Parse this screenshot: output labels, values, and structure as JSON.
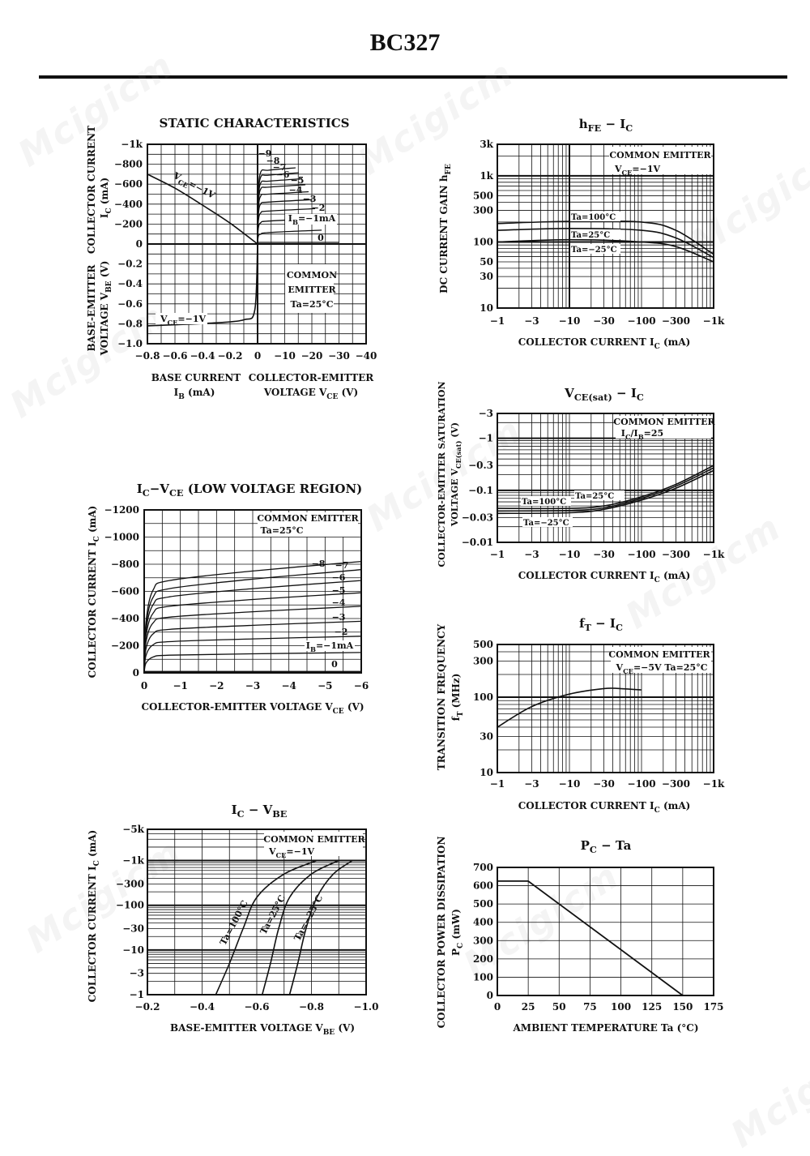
{
  "title": "BC327",
  "watermark": "Mcigicm",
  "chart_data": [
    {
      "id": "static",
      "type": "line",
      "title": "STATIC CHARACTERISTICS",
      "ylabel_top": [
        "COLLECTOR CURRENT",
        "I_C (mA)"
      ],
      "ylabel_bottom": [
        "BASE-EMITTER",
        "VOLTAGE V_BE (V)"
      ],
      "xlabel_left": [
        "BASE CURRENT",
        "I_B (mA)"
      ],
      "xlabel_right": [
        "COLLECTOR-EMITTER",
        "VOLTAGE V_CE (V)"
      ],
      "y_ticks_top": [
        "−1k",
        "−800",
        "−600",
        "−400",
        "−200",
        "0"
      ],
      "y_ticks_bottom": [
        "−0.2",
        "−0.4",
        "−0.6",
        "−0.8",
        "−1.0"
      ],
      "x_ticks_left": [
        "−0.8",
        "−0.6",
        "−0.4",
        "−0.2"
      ],
      "x_ticks_right": [
        "0",
        "−10",
        "−20",
        "−30",
        "−40"
      ],
      "annotations": [
        "COMMON",
        "EMITTER",
        "Ta=25°C"
      ],
      "curve_labels": [
        "−9",
        "−8",
        "−7",
        "−6",
        "−5",
        "−4",
        "−3",
        "−2",
        "I_B=−1mA",
        "0"
      ],
      "vce_label": "V_CE=−1V",
      "vbe_label": "V_CE=−1V",
      "series_ic_vs_ib": {
        "x_ib_mA": [
          0,
          -0.2,
          -0.4,
          -0.6,
          -0.8
        ],
        "y_ic_mA": [
          0,
          -210,
          -390,
          -560,
          -700
        ]
      },
      "series_vbe_vs_ib": {
        "x_ib_mA": [
          0,
          -0.02,
          -0.1,
          -0.3,
          -0.6,
          -0.8
        ],
        "y_vbe_V": [
          0,
          -0.66,
          -0.76,
          -0.79,
          -0.81,
          -0.82
        ]
      },
      "series_ic_vs_vce": [
        {
          "ib": "0",
          "ic_sat": 0
        },
        {
          "ib": "−1mA",
          "ic_sat": -115
        },
        {
          "ib": "−2",
          "ic_sat": -230
        },
        {
          "ib": "−3",
          "ic_sat": -330
        },
        {
          "ib": "−4",
          "ic_sat": -420
        },
        {
          "ib": "−5",
          "ic_sat": -500
        },
        {
          "ib": "−6",
          "ic_sat": -570
        },
        {
          "ib": "−7",
          "ic_sat": -630
        },
        {
          "ib": "−8",
          "ic_sat": -690
        },
        {
          "ib": "−9",
          "ic_sat": -740
        }
      ]
    },
    {
      "id": "hfe",
      "type": "line",
      "title": "h_FE − I_C",
      "xlabel": "COLLECTOR CURRENT I_C (mA)",
      "ylabel": "DC CURRENT GAIN h_FE",
      "x_ticks": [
        "−1",
        "−3",
        "−10",
        "−30",
        "−100",
        "−300",
        "−1k"
      ],
      "y_ticks": [
        "10",
        "30",
        "50",
        "100",
        "300",
        "500",
        "1k",
        "3k"
      ],
      "annotations": [
        "COMMON EMITTER",
        "V_CE=−1V"
      ],
      "xlim": [
        1,
        1000
      ],
      "ylim": [
        10,
        3000
      ],
      "log": true,
      "series": [
        {
          "name": "Ta=100°C",
          "x": [
            1,
            10,
            100,
            300,
            1000
          ],
          "y": [
            190,
            205,
            200,
            150,
            65
          ]
        },
        {
          "name": "Ta=25°C",
          "x": [
            1,
            10,
            100,
            300,
            1000
          ],
          "y": [
            150,
            160,
            150,
            115,
            58
          ]
        },
        {
          "name": "Ta=−25°C",
          "x": [
            1,
            10,
            100,
            300,
            1000
          ],
          "y": [
            100,
            108,
            100,
            85,
            50
          ]
        }
      ]
    },
    {
      "id": "vcesat",
      "type": "line",
      "title": "V_CE(sat) − I_C",
      "xlabel": "COLLECTOR CURRENT I_C (mA)",
      "ylabel": [
        "COLLECTOR-EMITTER SATURATION",
        "VOLTAGE V_CE(sat) (V)"
      ],
      "x_ticks": [
        "−1",
        "−3",
        "−10",
        "−30",
        "−100",
        "−300",
        "−1k"
      ],
      "y_ticks": [
        "−0.01",
        "−0.03",
        "−0.1",
        "−0.3",
        "−1",
        "−3"
      ],
      "annotations": [
        "COMMON EMITTER",
        "I_C/I_B=25"
      ],
      "xlim": [
        1,
        1000
      ],
      "ylim": [
        0.01,
        3
      ],
      "log": true,
      "series": [
        {
          "name": "Ta=100°C",
          "x": [
            1,
            10,
            30,
            100,
            300,
            1000
          ],
          "y": [
            0.045,
            0.045,
            0.05,
            0.075,
            0.13,
            0.3
          ]
        },
        {
          "name": "Ta=25°C",
          "x": [
            1,
            10,
            30,
            100,
            300,
            1000
          ],
          "y": [
            0.04,
            0.041,
            0.046,
            0.07,
            0.12,
            0.27
          ]
        },
        {
          "name": "Ta=−25°C",
          "x": [
            1,
            10,
            30,
            100,
            300,
            1000
          ],
          "y": [
            0.036,
            0.037,
            0.043,
            0.065,
            0.11,
            0.24
          ]
        }
      ]
    },
    {
      "id": "lowv",
      "type": "line",
      "title": "I_C−V_CE (LOW VOLTAGE REGION)",
      "xlabel": "COLLECTOR-EMITTER VOLTAGE V_CE (V)",
      "ylabel": "COLLECTOR CURRENT I_C (mA)",
      "x_ticks": [
        "0",
        "−1",
        "−2",
        "−3",
        "−4",
        "−5",
        "−6"
      ],
      "y_ticks": [
        "0",
        "−200",
        "−400",
        "−600",
        "−800",
        "−1000",
        "−1200"
      ],
      "annotations": [
        "COMMON EMITTER",
        "Ta=25°C"
      ],
      "xlim": [
        0,
        -6
      ],
      "ylim": [
        0,
        -1200
      ],
      "series": [
        {
          "name": "0",
          "sat": -10,
          "end": -10
        },
        {
          "name": "I_B=−1mA",
          "sat": -130,
          "end": -150
        },
        {
          "name": "−2",
          "sat": -230,
          "end": -270
        },
        {
          "name": "−3",
          "sat": -320,
          "end": -380
        },
        {
          "name": "−4",
          "sat": -410,
          "end": -490
        },
        {
          "name": "−5",
          "sat": -490,
          "end": -590
        },
        {
          "name": "−6",
          "sat": -560,
          "end": -680
        },
        {
          "name": "−7",
          "sat": -620,
          "end": -760
        },
        {
          "name": "−8",
          "sat": -680,
          "end": -820
        }
      ]
    },
    {
      "id": "ft",
      "type": "line",
      "title": "f_T − I_C",
      "xlabel": "COLLECTOR CURRENT I_C (mA)",
      "ylabel": [
        "TRANSITION FREQUENCY",
        "f_T (MHz)"
      ],
      "x_ticks": [
        "−1",
        "−3",
        "−10",
        "−30",
        "−100",
        "−300",
        "−1k"
      ],
      "y_ticks": [
        "10",
        "30",
        "100",
        "300",
        "500"
      ],
      "annotations": [
        "COMMON EMITTER",
        "V_CE=−5V  Ta=25°C"
      ],
      "xlim": [
        1,
        1000
      ],
      "ylim": [
        10,
        500
      ],
      "log": true,
      "series": [
        {
          "x": [
            1,
            3,
            10,
            30,
            50,
            100
          ],
          "y": [
            40,
            75,
            110,
            130,
            130,
            125
          ]
        }
      ]
    },
    {
      "id": "icvbe",
      "type": "line",
      "title": "I_C − V_BE",
      "xlabel": "BASE-EMITTER VOLTAGE V_BE (V)",
      "ylabel": "COLLECTOR CURRENT I_C (mA)",
      "x_ticks": [
        "−0.2",
        "−0.4",
        "−0.6",
        "−0.8",
        "−1.0"
      ],
      "y_ticks": [
        "−1",
        "−3",
        "−10",
        "−30",
        "−100",
        "−300",
        "−1k",
        "−5k"
      ],
      "annotations": [
        "COMMON EMITTER",
        "V_CE=−1V"
      ],
      "xlim": [
        -0.2,
        -1.0
      ],
      "ylim": [
        1,
        5000
      ],
      "log_y": true,
      "series": [
        {
          "name": "Ta=100°C",
          "x": [
            -0.45,
            -0.5,
            -0.55,
            -0.6,
            -0.7,
            -0.82
          ],
          "y": [
            1,
            5,
            30,
            150,
            500,
            1000
          ]
        },
        {
          "name": "Ta=25°C",
          "x": [
            -0.62,
            -0.65,
            -0.68,
            -0.72,
            -0.8,
            -0.9
          ],
          "y": [
            1,
            5,
            30,
            150,
            500,
            1000
          ]
        },
        {
          "name": "Ta=−25°C",
          "x": [
            -0.72,
            -0.75,
            -0.78,
            -0.82,
            -0.88,
            -0.95
          ],
          "y": [
            1,
            5,
            30,
            150,
            500,
            1000
          ]
        }
      ]
    },
    {
      "id": "pcta",
      "type": "line",
      "title": "P_C − Ta",
      "xlabel": "AMBIENT TEMPERATURE Ta (°C)",
      "ylabel": [
        "COLLECTOR POWER DISSIPATION",
        "P_C (mW)"
      ],
      "x_ticks": [
        "0",
        "25",
        "50",
        "75",
        "100",
        "125",
        "150",
        "175"
      ],
      "y_ticks": [
        "0",
        "100",
        "200",
        "300",
        "400",
        "500",
        "600",
        "700"
      ],
      "xlim": [
        0,
        175
      ],
      "ylim": [
        0,
        700
      ],
      "series": [
        {
          "x": [
            0,
            25,
            150
          ],
          "y": [
            625,
            625,
            0
          ]
        }
      ]
    }
  ]
}
